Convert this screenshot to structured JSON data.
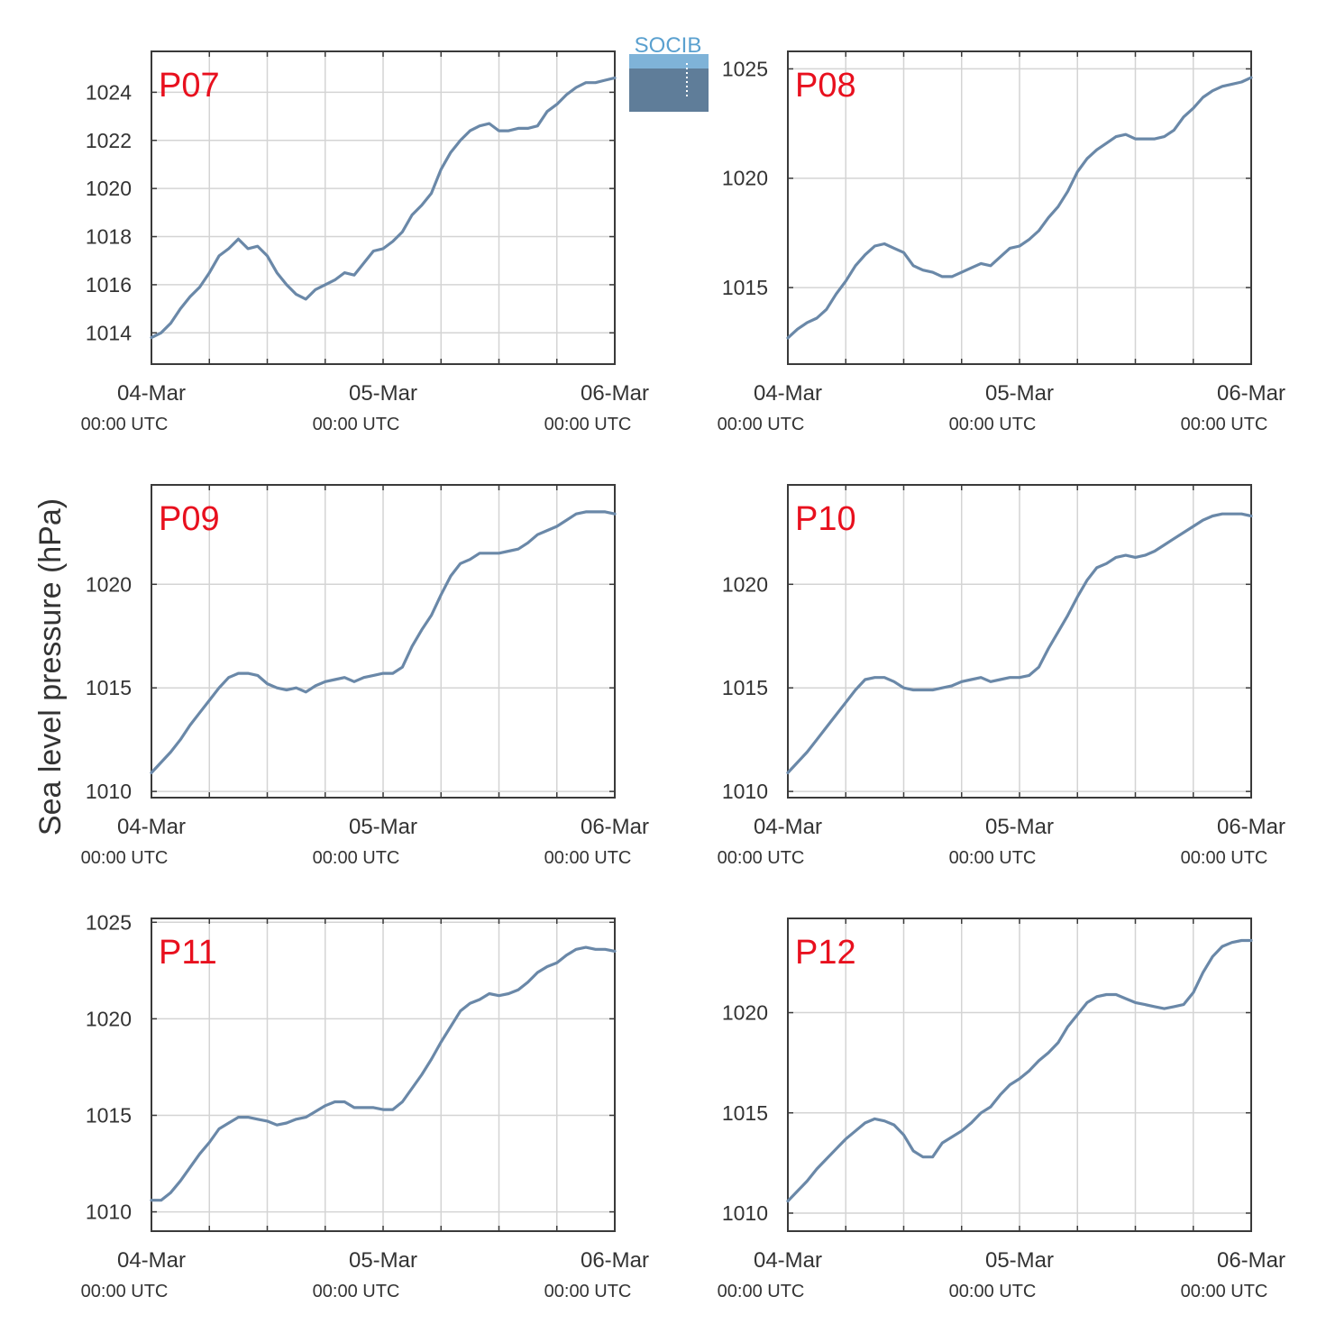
{
  "ylabel": "Sea level pressure (hPa)",
  "logo": {
    "text": "SOCIB"
  },
  "colors": {
    "line": "#6a88a8",
    "label": "#e8101e",
    "grid": "#d4d4d4",
    "axis": "#3a3a3a",
    "tick_text": "#333333",
    "logo_text": "#5aa0cf"
  },
  "xticks": [
    {
      "x": 0,
      "date": "04-Mar",
      "time": "00:00 UTC"
    },
    {
      "x": 24,
      "date": "05-Mar",
      "time": "00:00 UTC"
    },
    {
      "x": 48,
      "date": "06-Mar",
      "time": "00:00 UTC"
    }
  ],
  "chart_data": [
    {
      "type": "line",
      "title": "P07",
      "xlim": [
        0,
        48
      ],
      "ylim": [
        1012.7,
        1025.7
      ],
      "yticks": [
        1014,
        1016,
        1018,
        1020,
        1022,
        1024
      ],
      "x": [
        0,
        1,
        2,
        3,
        4,
        5,
        6,
        7,
        8,
        9,
        10,
        11,
        12,
        13,
        14,
        15,
        16,
        17,
        18,
        19,
        20,
        21,
        22,
        23,
        24,
        25,
        26,
        27,
        28,
        29,
        30,
        31,
        32,
        33,
        34,
        35,
        36,
        37,
        38,
        39,
        40,
        41,
        42,
        43,
        44,
        45,
        46,
        47,
        48
      ],
      "y": [
        1013.8,
        1014.0,
        1014.4,
        1015.0,
        1015.5,
        1015.9,
        1016.5,
        1017.2,
        1017.5,
        1017.9,
        1017.5,
        1017.6,
        1017.2,
        1016.5,
        1016.0,
        1015.6,
        1015.4,
        1015.8,
        1016.0,
        1016.2,
        1016.5,
        1016.4,
        1016.9,
        1017.4,
        1017.5,
        1017.8,
        1018.2,
        1018.9,
        1019.3,
        1019.8,
        1020.8,
        1021.5,
        1022.0,
        1022.4,
        1022.6,
        1022.7,
        1022.4,
        1022.4,
        1022.5,
        1022.5,
        1022.6,
        1023.2,
        1023.5,
        1023.9,
        1024.2,
        1024.4,
        1024.4,
        1024.5,
        1024.6
      ]
    },
    {
      "type": "line",
      "title": "P08",
      "xlim": [
        0,
        48
      ],
      "ylim": [
        1011.5,
        1025.8
      ],
      "yticks": [
        1015,
        1020,
        1025
      ],
      "x": [
        0,
        1,
        2,
        3,
        4,
        5,
        6,
        7,
        8,
        9,
        10,
        11,
        12,
        13,
        14,
        15,
        16,
        17,
        18,
        19,
        20,
        21,
        22,
        23,
        24,
        25,
        26,
        27,
        28,
        29,
        30,
        31,
        32,
        33,
        34,
        35,
        36,
        37,
        38,
        39,
        40,
        41,
        42,
        43,
        44,
        45,
        46,
        47,
        48
      ],
      "y": [
        1012.7,
        1013.1,
        1013.4,
        1013.6,
        1014.0,
        1014.7,
        1015.3,
        1016.0,
        1016.5,
        1016.9,
        1017.0,
        1016.8,
        1016.6,
        1016.0,
        1015.8,
        1015.7,
        1015.5,
        1015.5,
        1015.7,
        1015.9,
        1016.1,
        1016.0,
        1016.4,
        1016.8,
        1016.9,
        1017.2,
        1017.6,
        1018.2,
        1018.7,
        1019.4,
        1020.3,
        1020.9,
        1021.3,
        1021.6,
        1021.9,
        1022.0,
        1021.8,
        1021.8,
        1021.8,
        1021.9,
        1022.2,
        1022.8,
        1023.2,
        1023.7,
        1024.0,
        1024.2,
        1024.3,
        1024.4,
        1024.6
      ]
    },
    {
      "type": "line",
      "title": "P09",
      "xlim": [
        0,
        48
      ],
      "ylim": [
        1009.7,
        1024.8
      ],
      "yticks": [
        1010,
        1015,
        1020
      ],
      "x": [
        0,
        1,
        2,
        3,
        4,
        5,
        6,
        7,
        8,
        9,
        10,
        11,
        12,
        13,
        14,
        15,
        16,
        17,
        18,
        19,
        20,
        21,
        22,
        23,
        24,
        25,
        26,
        27,
        28,
        29,
        30,
        31,
        32,
        33,
        34,
        35,
        36,
        37,
        38,
        39,
        40,
        41,
        42,
        43,
        44,
        45,
        46,
        47,
        48
      ],
      "y": [
        1010.9,
        1011.4,
        1011.9,
        1012.5,
        1013.2,
        1013.8,
        1014.4,
        1015.0,
        1015.5,
        1015.7,
        1015.7,
        1015.6,
        1015.2,
        1015.0,
        1014.9,
        1015.0,
        1014.8,
        1015.1,
        1015.3,
        1015.4,
        1015.5,
        1015.3,
        1015.5,
        1015.6,
        1015.7,
        1015.7,
        1016.0,
        1017.0,
        1017.8,
        1018.5,
        1019.5,
        1020.4,
        1021.0,
        1021.2,
        1021.5,
        1021.5,
        1021.5,
        1021.6,
        1021.7,
        1022.0,
        1022.4,
        1022.6,
        1022.8,
        1023.1,
        1023.4,
        1023.5,
        1023.5,
        1023.5,
        1023.4
      ]
    },
    {
      "type": "line",
      "title": "P10",
      "xlim": [
        0,
        48
      ],
      "ylim": [
        1009.7,
        1024.8
      ],
      "yticks": [
        1010,
        1015,
        1020
      ],
      "x": [
        0,
        1,
        2,
        3,
        4,
        5,
        6,
        7,
        8,
        9,
        10,
        11,
        12,
        13,
        14,
        15,
        16,
        17,
        18,
        19,
        20,
        21,
        22,
        23,
        24,
        25,
        26,
        27,
        28,
        29,
        30,
        31,
        32,
        33,
        34,
        35,
        36,
        37,
        38,
        39,
        40,
        41,
        42,
        43,
        44,
        45,
        46,
        47,
        48
      ],
      "y": [
        1010.9,
        1011.4,
        1011.9,
        1012.5,
        1013.1,
        1013.7,
        1014.3,
        1014.9,
        1015.4,
        1015.5,
        1015.5,
        1015.3,
        1015.0,
        1014.9,
        1014.9,
        1014.9,
        1015.0,
        1015.1,
        1015.3,
        1015.4,
        1015.5,
        1015.3,
        1015.4,
        1015.5,
        1015.5,
        1015.6,
        1016.0,
        1016.9,
        1017.7,
        1018.5,
        1019.4,
        1020.2,
        1020.8,
        1021.0,
        1021.3,
        1021.4,
        1021.3,
        1021.4,
        1021.6,
        1021.9,
        1022.2,
        1022.5,
        1022.8,
        1023.1,
        1023.3,
        1023.4,
        1023.4,
        1023.4,
        1023.3
      ]
    },
    {
      "type": "line",
      "title": "P11",
      "xlim": [
        0,
        48
      ],
      "ylim": [
        1009.0,
        1025.2
      ],
      "yticks": [
        1010,
        1015,
        1020,
        1025
      ],
      "x": [
        0,
        1,
        2,
        3,
        4,
        5,
        6,
        7,
        8,
        9,
        10,
        11,
        12,
        13,
        14,
        15,
        16,
        17,
        18,
        19,
        20,
        21,
        22,
        23,
        24,
        25,
        26,
        27,
        28,
        29,
        30,
        31,
        32,
        33,
        34,
        35,
        36,
        37,
        38,
        39,
        40,
        41,
        42,
        43,
        44,
        45,
        46,
        47,
        48
      ],
      "y": [
        1010.6,
        1010.6,
        1011.0,
        1011.6,
        1012.3,
        1013.0,
        1013.6,
        1014.3,
        1014.6,
        1014.9,
        1014.9,
        1014.8,
        1014.7,
        1014.5,
        1014.6,
        1014.8,
        1014.9,
        1015.2,
        1015.5,
        1015.7,
        1015.7,
        1015.4,
        1015.4,
        1015.4,
        1015.3,
        1015.3,
        1015.7,
        1016.4,
        1017.1,
        1017.9,
        1018.8,
        1019.6,
        1020.4,
        1020.8,
        1021.0,
        1021.3,
        1021.2,
        1021.3,
        1021.5,
        1021.9,
        1022.4,
        1022.7,
        1022.9,
        1023.3,
        1023.6,
        1023.7,
        1023.6,
        1023.6,
        1023.5
      ]
    },
    {
      "type": "line",
      "title": "P12",
      "xlim": [
        0,
        48
      ],
      "ylim": [
        1009.1,
        1024.7
      ],
      "yticks": [
        1010,
        1015,
        1020
      ],
      "x": [
        0,
        1,
        2,
        3,
        4,
        5,
        6,
        7,
        8,
        9,
        10,
        11,
        12,
        13,
        14,
        15,
        16,
        17,
        18,
        19,
        20,
        21,
        22,
        23,
        24,
        25,
        26,
        27,
        28,
        29,
        30,
        31,
        32,
        33,
        34,
        35,
        36,
        37,
        38,
        39,
        40,
        41,
        42,
        43,
        44,
        45,
        46,
        47,
        48
      ],
      "y": [
        1010.6,
        1011.1,
        1011.6,
        1012.2,
        1012.7,
        1013.2,
        1013.7,
        1014.1,
        1014.5,
        1014.7,
        1014.6,
        1014.4,
        1013.9,
        1013.1,
        1012.8,
        1012.8,
        1013.5,
        1013.8,
        1014.1,
        1014.5,
        1015.0,
        1015.3,
        1015.9,
        1016.4,
        1016.7,
        1017.1,
        1017.6,
        1018.0,
        1018.5,
        1019.3,
        1019.9,
        1020.5,
        1020.8,
        1020.9,
        1020.9,
        1020.7,
        1020.5,
        1020.4,
        1020.3,
        1020.2,
        1020.3,
        1020.4,
        1021.0,
        1022.0,
        1022.8,
        1023.3,
        1023.5,
        1023.6,
        1023.6
      ]
    }
  ]
}
